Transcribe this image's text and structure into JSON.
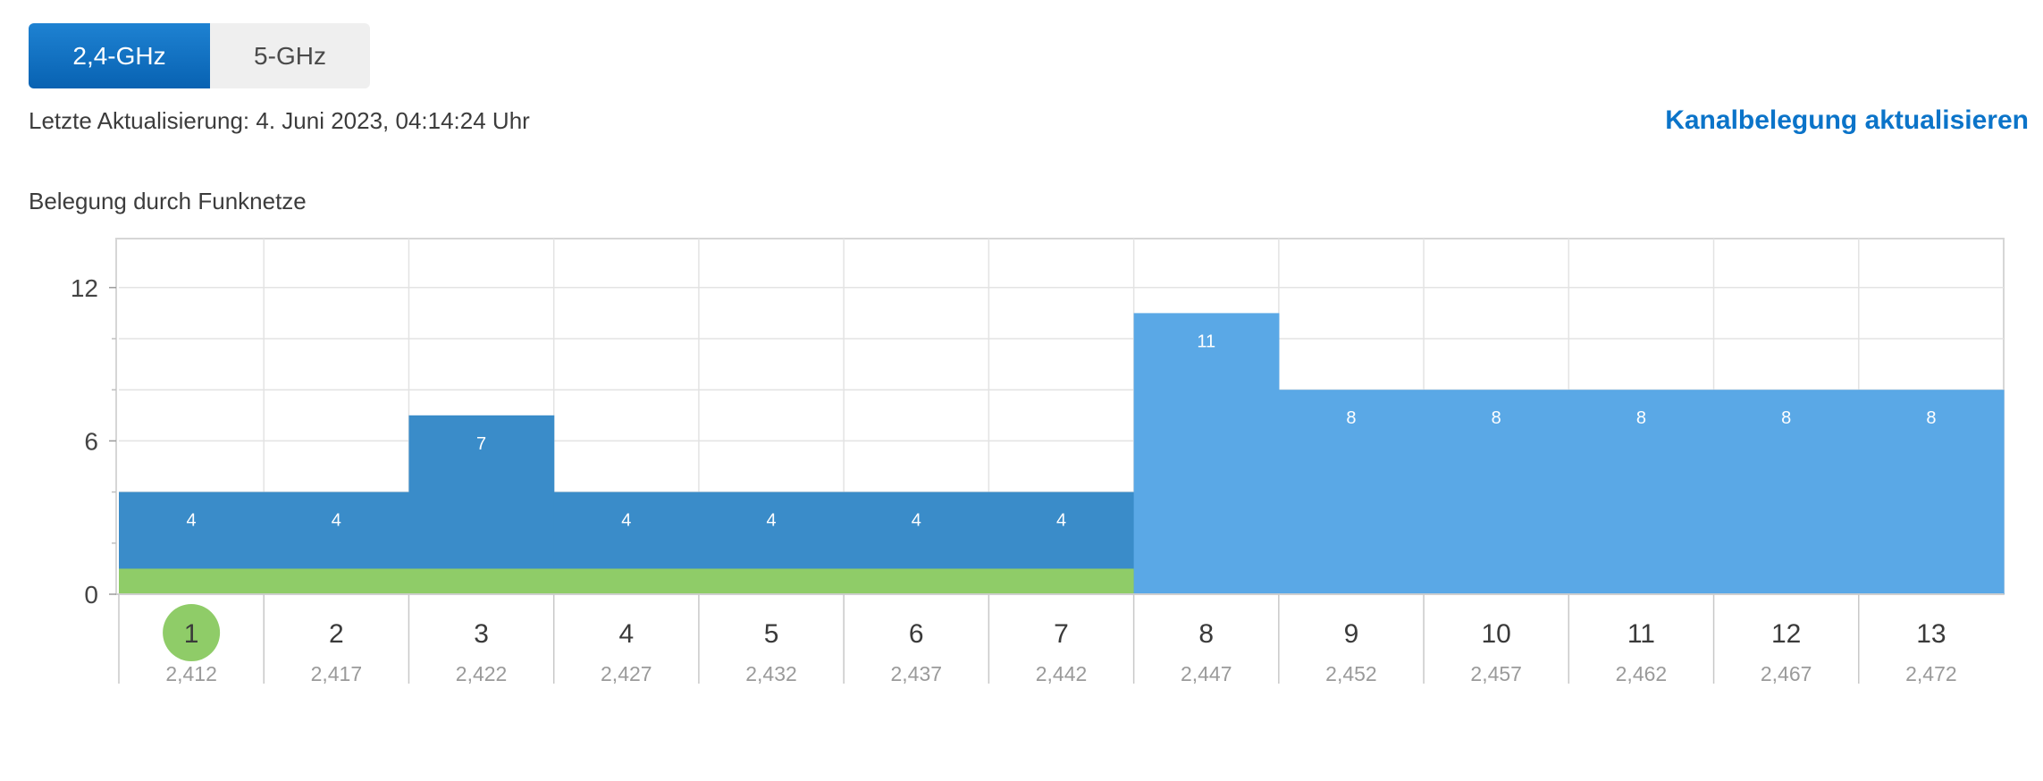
{
  "tabs": [
    {
      "label": "2,4-GHz",
      "active": true
    },
    {
      "label": "5-GHz",
      "active": false
    }
  ],
  "status": {
    "last_update": "Letzte Aktualisierung: 4. Juni 2023, 04:14:24 Uhr"
  },
  "actions": {
    "refresh_label": "Kanalbelegung aktualisieren"
  },
  "colors": {
    "accent": "#0b74c9",
    "own_network_band": "#00a0ff",
    "other_networks_band": "#5aa8e6",
    "own_network_marker": "#8fcc68",
    "grid": "#e3e3e3"
  },
  "chart_data": {
    "type": "bar",
    "title": "Belegung durch Funknetze",
    "xlabel": "",
    "ylabel": "",
    "ylim": [
      0,
      14
    ],
    "yticks": [
      "0",
      "6",
      "12"
    ],
    "categories": [
      "1",
      "2",
      "3",
      "4",
      "5",
      "6",
      "7",
      "8",
      "9",
      "10",
      "11",
      "12",
      "13"
    ],
    "frequencies": [
      "2,412",
      "2,417",
      "2,422",
      "2,427",
      "2,432",
      "2,437",
      "2,442",
      "2,447",
      "2,452",
      "2,457",
      "2,462",
      "2,467",
      "2,472"
    ],
    "values": [
      4,
      4,
      7,
      4,
      4,
      4,
      4,
      11,
      8,
      8,
      8,
      8,
      8
    ],
    "own_network": {
      "channel": "1",
      "channels_occupied": [
        "1",
        "2",
        "3",
        "4",
        "5",
        "6",
        "7"
      ],
      "value": 1
    },
    "grid": true
  }
}
